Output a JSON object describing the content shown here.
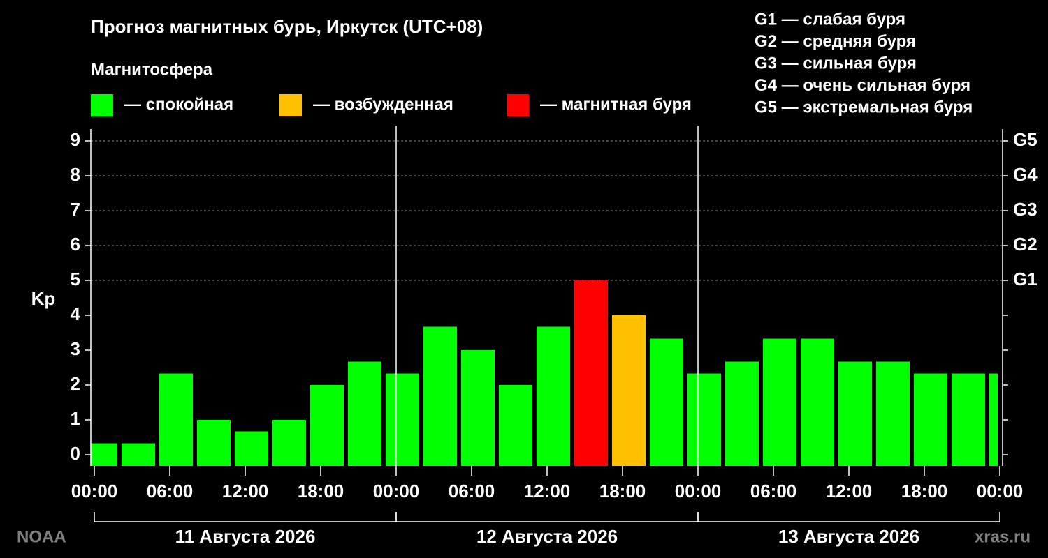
{
  "chart_data": {
    "type": "bar",
    "title": "Прогноз магнитных бурь, Иркутск (UTC+08)",
    "subtitle": "Магнитосфера",
    "legend": [
      {
        "color": "#00ff00",
        "label": "— спокойная"
      },
      {
        "color": "#ffc000",
        "label": "— возбужденная"
      },
      {
        "color": "#ff0000",
        "label": "— магнитная буря"
      }
    ],
    "g_legend": [
      "G1 — слабая буря",
      "G2 — средняя буря",
      "G3 — сильная буря",
      "G4 — очень сильная буря",
      "G5 — экстремальная буря"
    ],
    "ylabel": "Kp",
    "x": [
      -1,
      2,
      5,
      8,
      11,
      14,
      17,
      20,
      23,
      26,
      29,
      32,
      35,
      38,
      41,
      44,
      47,
      50,
      53,
      56,
      59,
      62,
      65,
      68,
      71
    ],
    "values": [
      0.33,
      0.33,
      2.33,
      1,
      0.67,
      1,
      2,
      2.67,
      2.33,
      3.67,
      3,
      2,
      3.67,
      5,
      4,
      3.33,
      2.33,
      2.67,
      3.33,
      3.33,
      2.67,
      2.67,
      2.33,
      2.33,
      2.33
    ],
    "colors": [
      "#00ff00",
      "#00ff00",
      "#00ff00",
      "#00ff00",
      "#00ff00",
      "#00ff00",
      "#00ff00",
      "#00ff00",
      "#00ff00",
      "#00ff00",
      "#00ff00",
      "#00ff00",
      "#00ff00",
      "#ff0000",
      "#ffc000",
      "#00ff00",
      "#00ff00",
      "#00ff00",
      "#00ff00",
      "#00ff00",
      "#00ff00",
      "#00ff00",
      "#00ff00",
      "#00ff00",
      "#00ff00"
    ],
    "xlim": [
      0,
      72
    ],
    "xticks": [
      {
        "value": 0,
        "label": "00:00"
      },
      {
        "value": 6,
        "label": "06:00"
      },
      {
        "value": 12,
        "label": "12:00"
      },
      {
        "value": 18,
        "label": "18:00"
      },
      {
        "value": 24,
        "label": "00:00"
      },
      {
        "value": 30,
        "label": "06:00"
      },
      {
        "value": 36,
        "label": "12:00"
      },
      {
        "value": 42,
        "label": "18:00"
      },
      {
        "value": 48,
        "label": "00:00"
      },
      {
        "value": 54,
        "label": "06:00"
      },
      {
        "value": 60,
        "label": "12:00"
      },
      {
        "value": 66,
        "label": "18:00"
      },
      {
        "value": 72,
        "label": "00:00"
      }
    ],
    "days": [
      "11 Августа 2026",
      "12 Августа 2026",
      "13 Августа 2026"
    ],
    "ylim": [
      -0.32,
      9.34
    ],
    "yticks": [
      0,
      1,
      2,
      3,
      4,
      5,
      6,
      7,
      8,
      9
    ],
    "y2ticks": [
      {
        "value": 5,
        "label": "G1"
      },
      {
        "value": 6,
        "label": "G2"
      },
      {
        "value": 7,
        "label": "G3"
      },
      {
        "value": 8,
        "label": "G4"
      },
      {
        "value": 9,
        "label": "G5"
      }
    ],
    "grid": true,
    "source": "NOAA",
    "credit": "xras.ru"
  }
}
